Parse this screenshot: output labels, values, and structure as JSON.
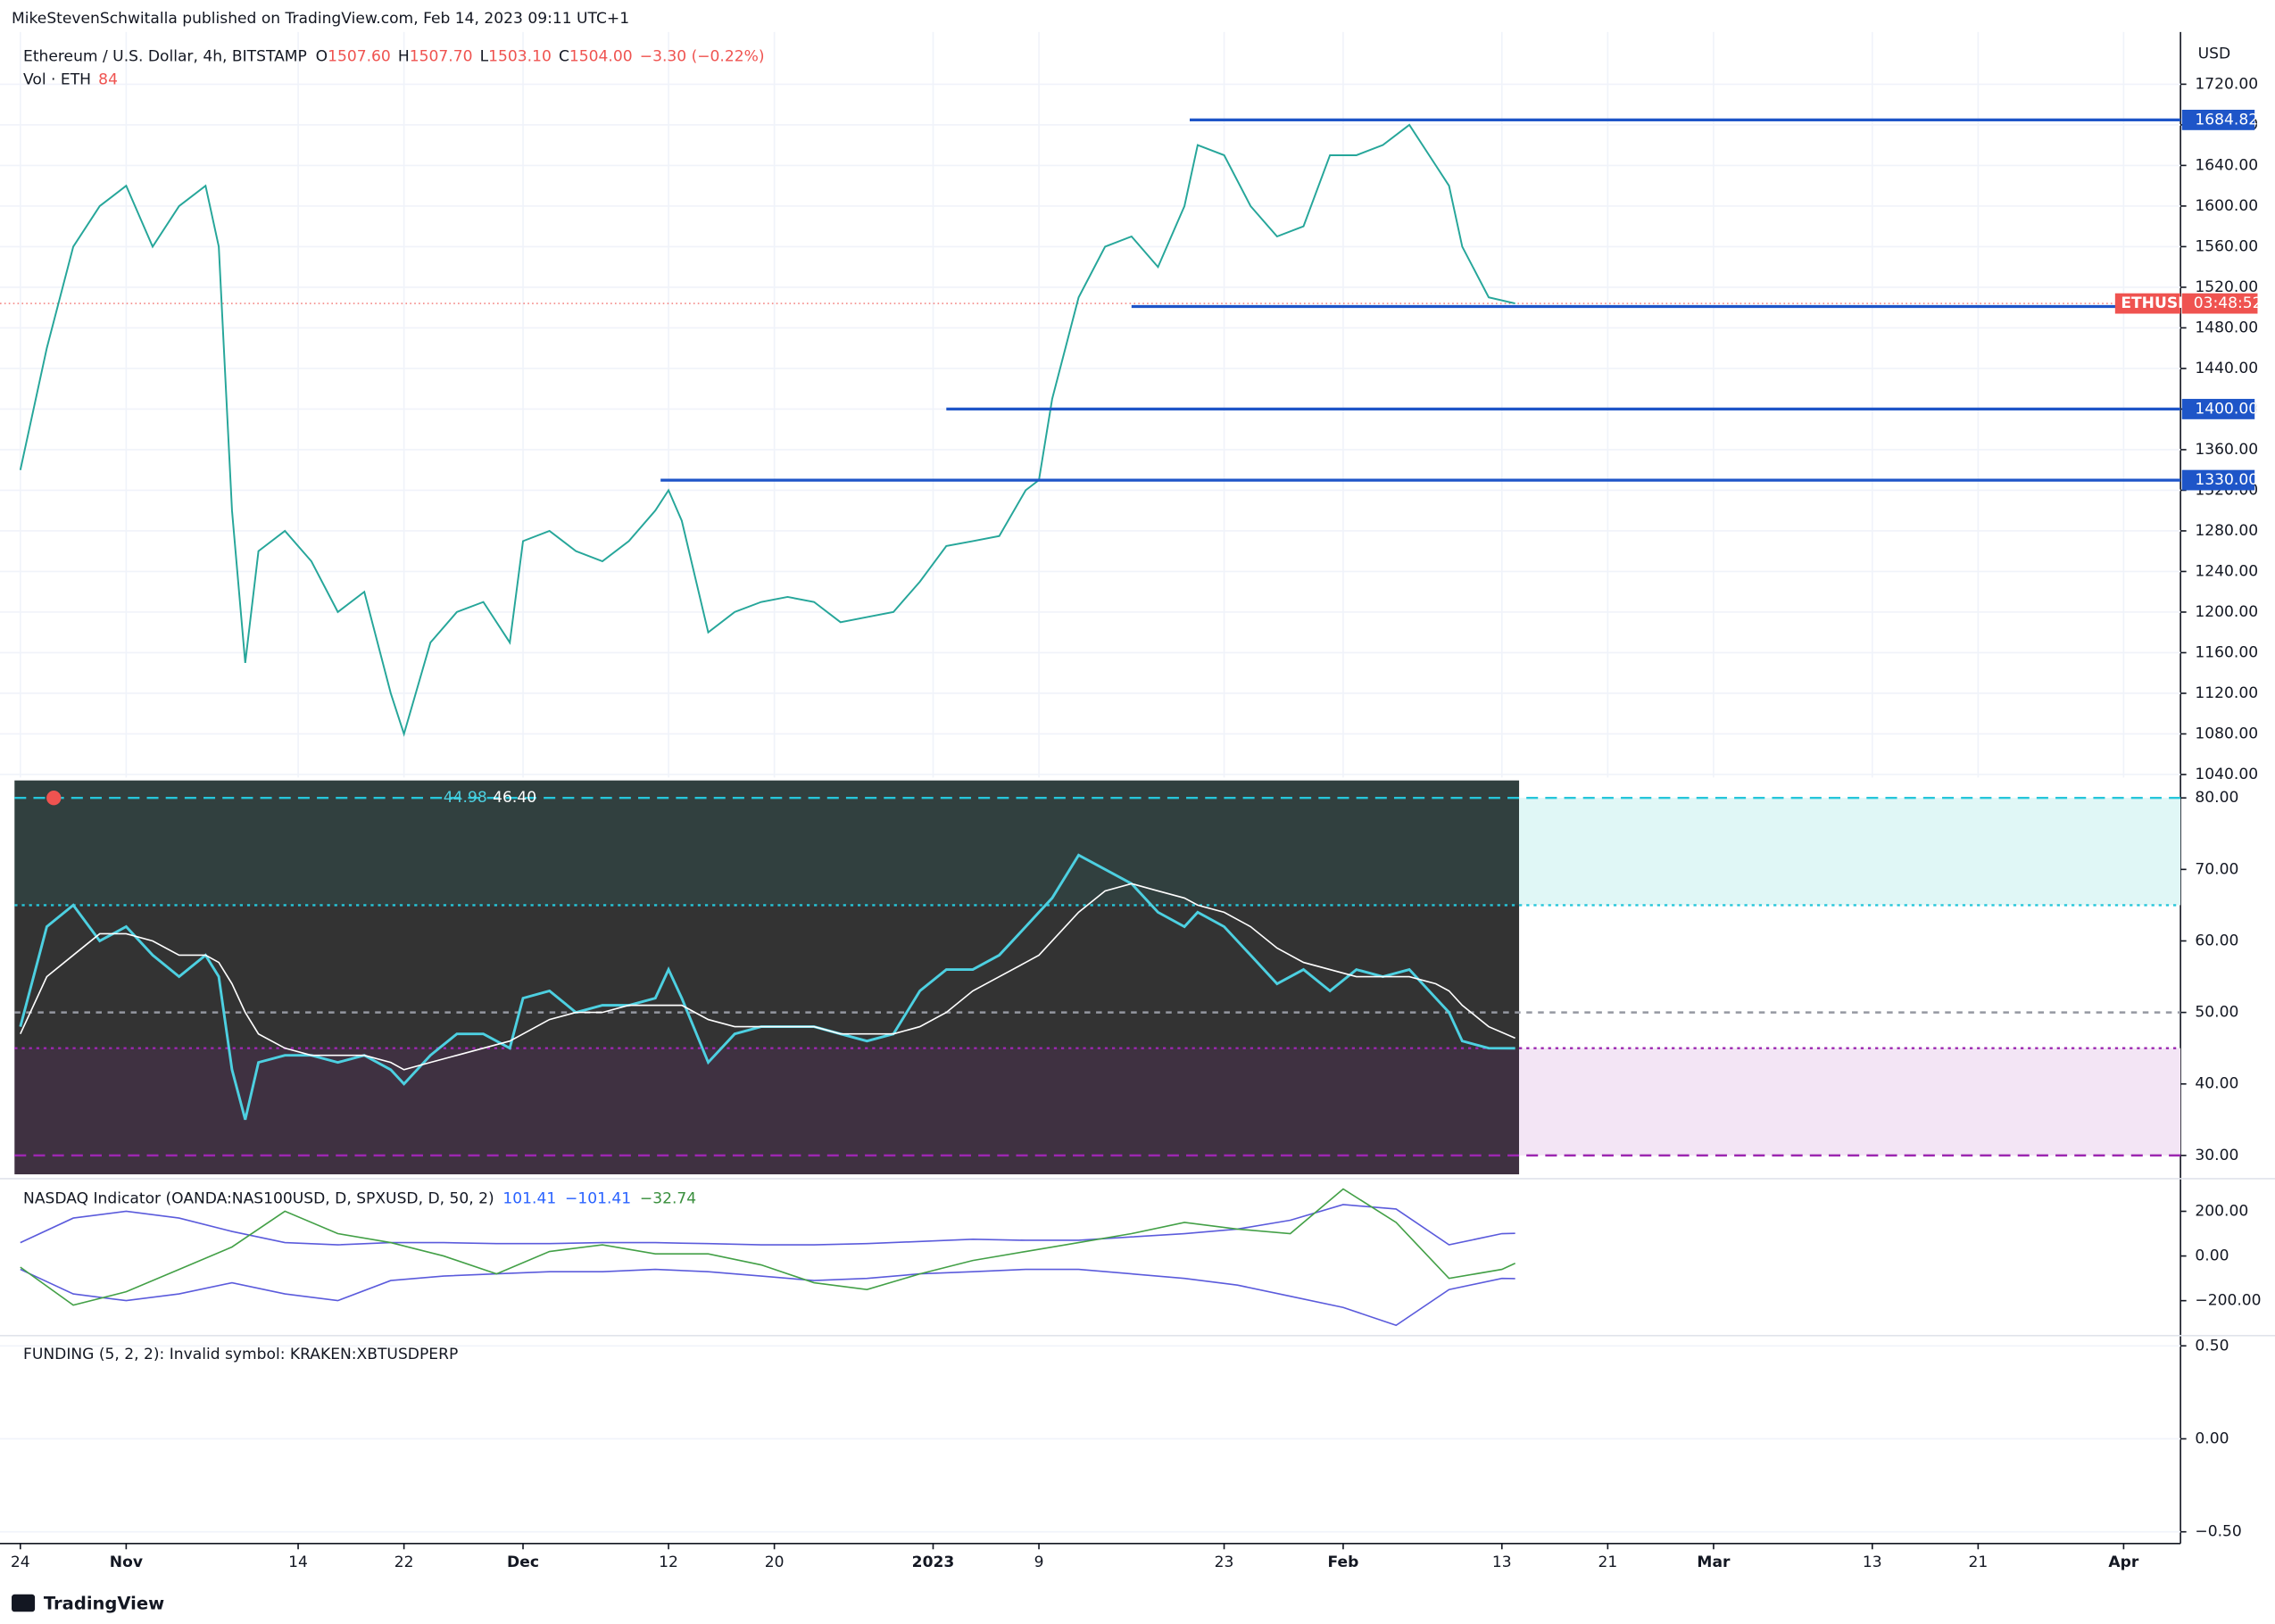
{
  "header": {
    "published": "MikeStevenSchwitalla published on TradingView.com, Feb 14, 2023 09:11 UTC+1",
    "footer": "TradingView"
  },
  "chart_data": [
    {
      "type": "line",
      "title": "Ethereum / U.S. Dollar, 4h, BITSTAMP",
      "ohlc": [
        {
          "label": "O",
          "value": "1507.60"
        },
        {
          "label": "H",
          "value": "1507.70"
        },
        {
          "label": "L",
          "value": "1503.10"
        },
        {
          "label": "C",
          "value": "1504.00"
        }
      ],
      "change": "−3.30 (−0.22%)",
      "volume_label": "Vol · ETH",
      "volume": "84",
      "currency": "USD",
      "symbol_label": "ETHUSD",
      "countdown": "03:48:52",
      "last_price": 1504,
      "x": [
        0,
        2,
        4,
        6,
        8,
        10,
        12,
        14,
        15,
        16,
        17,
        18,
        20,
        22,
        24,
        26,
        28,
        29,
        31,
        33,
        35,
        37,
        38,
        40,
        42,
        44,
        46,
        48,
        49,
        50,
        52,
        54,
        56,
        58,
        60,
        62,
        64,
        66,
        68,
        70,
        72,
        74,
        76,
        77,
        78,
        80,
        82,
        84,
        86,
        88,
        89,
        91,
        93,
        95,
        97,
        99,
        101,
        103,
        105,
        107,
        108,
        109,
        111,
        113
      ],
      "xlim": [
        -0.44,
        163.3
      ],
      "xticks": [
        {
          "value": 0,
          "label": "24"
        },
        {
          "value": 8,
          "label": "Nov"
        },
        {
          "value": 21,
          "label": "14"
        },
        {
          "value": 29,
          "label": "22"
        },
        {
          "value": 38,
          "label": "Dec"
        },
        {
          "value": 49,
          "label": "12"
        },
        {
          "value": 57,
          "label": "20"
        },
        {
          "value": 69,
          "label": "2023"
        },
        {
          "value": 77,
          "label": "9"
        },
        {
          "value": 91,
          "label": "23"
        },
        {
          "value": 100,
          "label": "Feb"
        },
        {
          "value": 112,
          "label": "13"
        },
        {
          "value": 120,
          "label": "21"
        },
        {
          "value": 128,
          "label": "Mar"
        },
        {
          "value": 140,
          "label": "13"
        },
        {
          "value": 148,
          "label": "21"
        },
        {
          "value": 159,
          "label": "Apr"
        }
      ],
      "ylim": [
        1037,
        1760
      ],
      "yticks": [
        {
          "value": 1040,
          "label": "1040.00"
        },
        {
          "value": 1080,
          "label": "1080.00"
        },
        {
          "value": 1120,
          "label": "1120.00"
        },
        {
          "value": 1160,
          "label": "1160.00"
        },
        {
          "value": 1200,
          "label": "1200.00"
        },
        {
          "value": 1240,
          "label": "1240.00"
        },
        {
          "value": 1280,
          "label": "1280.00"
        },
        {
          "value": 1320,
          "label": "1320.00"
        },
        {
          "value": 1360,
          "label": "1360.00"
        },
        {
          "value": 1400,
          "label": "1400.00"
        },
        {
          "value": 1440,
          "label": "1440.00"
        },
        {
          "value": 1480,
          "label": "1480.00"
        },
        {
          "value": 1520,
          "label": "1520.00"
        },
        {
          "value": 1560,
          "label": "1560.00"
        },
        {
          "value": 1600,
          "label": "1600.00"
        },
        {
          "value": 1640,
          "label": "1640.00"
        },
        {
          "value": 1680,
          "label": "1680.00"
        },
        {
          "value": 1720,
          "label": "1720.00"
        }
      ],
      "series": [
        {
          "color": "#26a69a",
          "values": [
            1340,
            1460,
            1560,
            1600,
            1620,
            1560,
            1600,
            1620,
            1560,
            1300,
            1150,
            1260,
            1280,
            1250,
            1200,
            1220,
            1120,
            1080,
            1170,
            1200,
            1210,
            1170,
            1270,
            1280,
            1260,
            1250,
            1270,
            1300,
            1320,
            1290,
            1180,
            1200,
            1210,
            1215,
            1210,
            1190,
            1195,
            1200,
            1230,
            1265,
            1270,
            1275,
            1320,
            1330,
            1410,
            1510,
            1560,
            1570,
            1540,
            1600,
            1660,
            1650,
            1600,
            1570,
            1580,
            1650,
            1650,
            1660,
            1680,
            1640,
            1620,
            1560,
            1510,
            1504
          ]
        }
      ],
      "levels": [
        {
          "value": 1684.82,
          "label": "1684.82",
          "start": 88.4
        },
        {
          "value": 1501,
          "start": 84
        },
        {
          "value": 1400,
          "label": "1400.00",
          "start": 70
        },
        {
          "value": 1330,
          "label": "1330.00",
          "start": 48.4
        }
      ]
    },
    {
      "type": "line",
      "header": [
        "44.98",
        "46.40"
      ],
      "ylim": [
        27.36,
        82.44
      ],
      "yticks": [
        {
          "value": 30,
          "label": "30.00"
        },
        {
          "value": 40,
          "label": "40.00"
        },
        {
          "value": 50,
          "label": "50.00"
        },
        {
          "value": 60,
          "label": "60.00"
        },
        {
          "value": 70,
          "label": "70.00"
        },
        {
          "value": 80,
          "label": "80.00"
        }
      ],
      "levels": [
        {
          "value": 80,
          "color": "#26c6da",
          "dash": "8 5"
        },
        {
          "value": 65,
          "color": "#26c6da",
          "dash": "2 3"
        },
        {
          "value": 50,
          "color": "#9598a1",
          "dash": "4 4"
        },
        {
          "value": 45,
          "color": "#9c27b0",
          "dash": "2 3"
        },
        {
          "value": 30,
          "color": "#9c27b0",
          "dash": "8 5"
        }
      ],
      "bands": [
        {
          "from": 65,
          "to": 80,
          "color": "#e0f7f6"
        },
        {
          "from": 30,
          "to": 45,
          "color": "#f3e5f5"
        }
      ],
      "series": [
        {
          "color": "#4dd0e1",
          "values": [
            48,
            62,
            65,
            60,
            62,
            58,
            55,
            58,
            55,
            42,
            35,
            43,
            44,
            44,
            43,
            44,
            42,
            40,
            44,
            47,
            47,
            45,
            52,
            53,
            50,
            51,
            51,
            52,
            56,
            52,
            43,
            47,
            48,
            48,
            48,
            47,
            46,
            47,
            53,
            56,
            56,
            58,
            62,
            64,
            66,
            72,
            70,
            68,
            64,
            62,
            64,
            62,
            58,
            54,
            56,
            53,
            56,
            55,
            56,
            52,
            50,
            46,
            45,
            44.98
          ]
        },
        {
          "color": "#ffffff",
          "values": [
            47,
            55,
            58,
            61,
            61,
            60,
            58,
            58,
            57,
            54,
            50,
            47,
            45,
            44,
            44,
            44,
            43,
            42,
            43,
            44,
            45,
            46,
            47,
            49,
            50,
            50,
            51,
            51,
            51,
            51,
            49,
            48,
            48,
            48,
            48,
            47,
            47,
            47,
            48,
            50,
            53,
            55,
            57,
            58,
            60,
            64,
            67,
            68,
            67,
            66,
            65,
            64,
            62,
            59,
            57,
            56,
            55,
            55,
            55,
            54,
            53,
            51,
            48,
            46.4
          ]
        }
      ]
    },
    {
      "type": "line",
      "title": "NASDAQ Indicator (OANDA:NAS100USD, D, SPXUSD, D, 50, 2)",
      "header": [
        {
          "text": "101.41",
          "color": "#2962ff"
        },
        {
          "text": "−101.41",
          "color": "#2962ff"
        },
        {
          "text": "−32.74",
          "color": "#388e3c"
        }
      ],
      "x": [
        0,
        4,
        8,
        12,
        16,
        20,
        24,
        28,
        32,
        36,
        40,
        44,
        48,
        52,
        56,
        60,
        64,
        68,
        72,
        76,
        80,
        84,
        88,
        92,
        96,
        100,
        104,
        108,
        112,
        113
      ],
      "ylim": [
        -350,
        320
      ],
      "yticks": [
        {
          "value": 200,
          "label": "200.00"
        },
        {
          "value": 0,
          "label": "0.00"
        },
        {
          "value": -200,
          "label": "−200.00"
        }
      ],
      "series": [
        {
          "color": "#5b5bdc",
          "values": [
            60,
            170,
            200,
            170,
            110,
            60,
            50,
            60,
            60,
            55,
            55,
            60,
            60,
            55,
            50,
            50,
            55,
            65,
            75,
            70,
            70,
            85,
            100,
            120,
            160,
            230,
            210,
            50,
            100,
            101.41
          ]
        },
        {
          "color": "#5b5bdc",
          "values": [
            -60,
            -170,
            -200,
            -170,
            -120,
            -170,
            -200,
            -110,
            -90,
            -80,
            -70,
            -70,
            -60,
            -70,
            -90,
            -110,
            -100,
            -80,
            -70,
            -60,
            -60,
            -80,
            -100,
            -130,
            -180,
            -230,
            -310,
            -150,
            -100,
            -101.41
          ]
        },
        {
          "color": "#43a047",
          "values": [
            -50,
            -220,
            -160,
            -60,
            40,
            200,
            100,
            60,
            0,
            -80,
            20,
            50,
            10,
            10,
            -40,
            -120,
            -150,
            -80,
            -20,
            20,
            60,
            100,
            150,
            120,
            100,
            300,
            150,
            -100,
            -60,
            -32.74
          ]
        }
      ]
    },
    {
      "type": "empty",
      "title": "FUNDING (5, 2, 2): Invalid symbol: KRAKEN:XBTUSDPERP",
      "ylim": [
        -0.547,
        0.547
      ],
      "yticks": [
        {
          "value": 0.5,
          "label": "0.50"
        },
        {
          "value": 0,
          "label": "0.00"
        },
        {
          "value": -0.5,
          "label": "−0.50"
        }
      ]
    }
  ]
}
